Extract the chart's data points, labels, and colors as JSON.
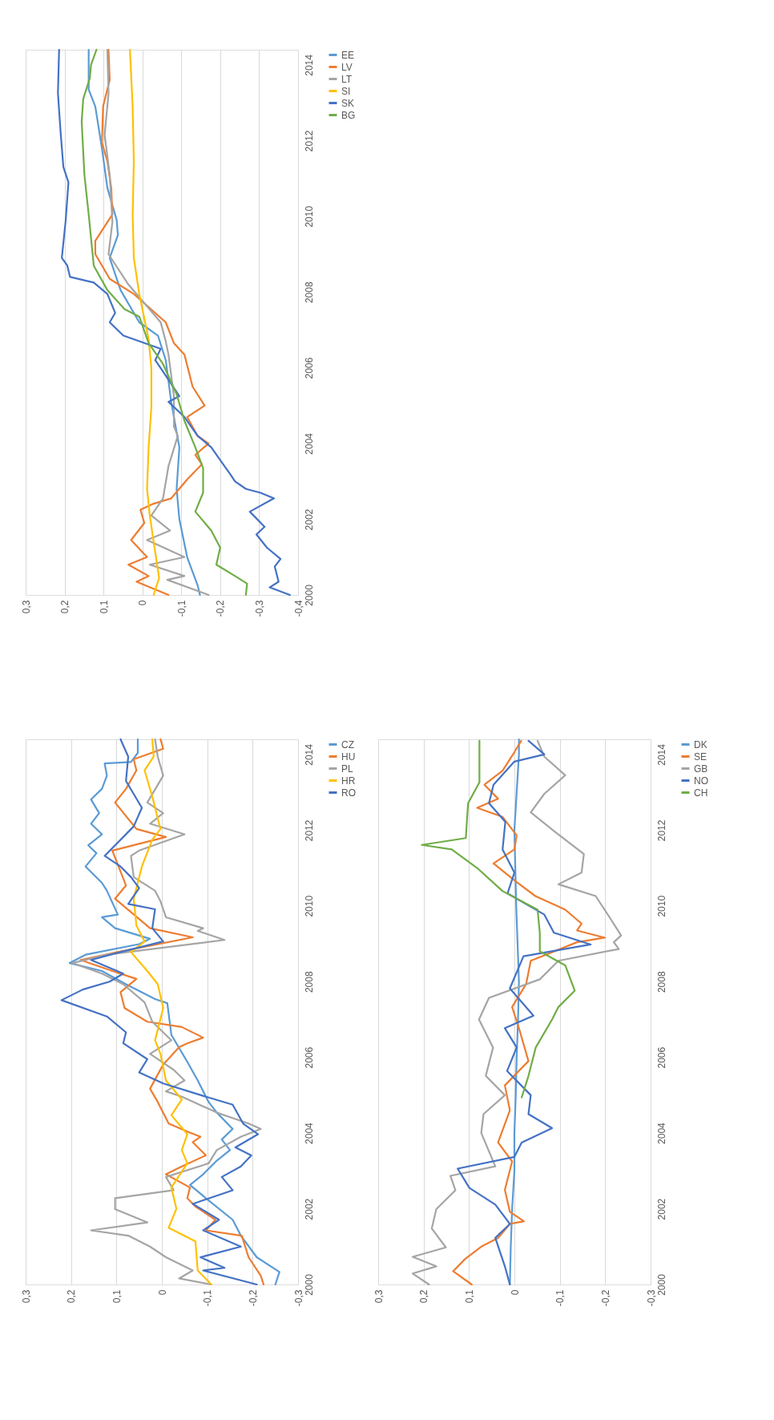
{
  "chart_data": [
    {
      "type": "line",
      "ylim": [
        2000,
        2014.4
      ],
      "yticks": [
        2000,
        2002,
        2004,
        2006,
        2008,
        2010,
        2012,
        2014
      ],
      "xlim": [
        0.3,
        -0.4
      ],
      "xticks": [
        {
          "value": 0.3,
          "label": "0,3"
        },
        {
          "value": 0.2,
          "label": "0,2"
        },
        {
          "value": 0.1,
          "label": "0,1"
        },
        {
          "value": 0,
          "label": "0"
        },
        {
          "value": -0.1,
          "label": "-0,1"
        },
        {
          "value": -0.2,
          "label": "-0,2"
        },
        {
          "value": -0.3,
          "label": "-0,3"
        },
        {
          "value": -0.4,
          "label": "-0,4"
        }
      ],
      "grid": "x",
      "legend": "right",
      "series": [
        {
          "name": "EE",
          "color": "#5b9bd5",
          "values": [
            2000.0,
            2000.25,
            2001.0,
            2002.0,
            2002.8,
            2003.9,
            2005.1,
            2006.2,
            2006.85,
            2007.2,
            2008.05,
            2008.9,
            2009.5,
            2009.9,
            2010.75,
            2011.8,
            2012.9,
            2013.35,
            2014.4
          ],
          "x": [
            -0.148,
            -0.142,
            -0.115,
            -0.095,
            -0.088,
            -0.095,
            -0.074,
            -0.06,
            -0.04,
            0.008,
            0.056,
            0.084,
            0.063,
            0.066,
            0.09,
            0.104,
            0.121,
            0.138,
            0.138
          ]
        },
        {
          "name": "LV",
          "color": "#ed7d31",
          "values": [
            2000.0,
            2000.35,
            2000.5,
            2000.8,
            2001.0,
            2001.45,
            2001.9,
            2002.25,
            2002.4,
            2002.55,
            2003.05,
            2003.45,
            2003.7,
            2004.0,
            2004.2,
            2004.7,
            2005.0,
            2005.5,
            2006.35,
            2006.65,
            2007.2,
            2007.95,
            2008.35,
            2009.0,
            2009.35,
            2010.05,
            2010.75,
            2011.45,
            2011.95,
            2012.9,
            2013.6,
            2014.4
          ],
          "x": [
            -0.067,
            0.015,
            -0.016,
            0.036,
            -0.012,
            0.029,
            -0.005,
            0.005,
            -0.026,
            -0.074,
            -0.115,
            -0.153,
            -0.136,
            -0.17,
            -0.142,
            -0.115,
            -0.16,
            -0.129,
            -0.108,
            -0.081,
            -0.06,
            0.022,
            0.084,
            0.121,
            0.121,
            0.077,
            0.08,
            0.09,
            0.104,
            0.101,
            0.084,
            0.087
          ]
        },
        {
          "name": "LT",
          "color": "#a5a5a5",
          "values": [
            2000.0,
            2000.4,
            2000.5,
            2000.8,
            2001.0,
            2001.45,
            2001.7,
            2002.1,
            2002.55,
            2003.4,
            2004.2,
            2004.45,
            2005.25,
            2006.35,
            2006.7,
            2007.2,
            2008.2,
            2009.0,
            2009.85,
            2011.1,
            2012.15,
            2013.25,
            2014.4
          ],
          "x": [
            -0.17,
            -0.064,
            -0.108,
            -0.019,
            -0.108,
            -0.012,
            -0.071,
            -0.023,
            -0.053,
            -0.067,
            -0.091,
            -0.081,
            -0.081,
            -0.067,
            -0.06,
            -0.047,
            0.036,
            0.087,
            0.077,
            0.084,
            0.097,
            0.087,
            0.09
          ]
        },
        {
          "name": "SI",
          "color": "#ffc000",
          "values": [
            2000.0,
            2000.45,
            2001.4,
            2002.1,
            2002.8,
            2003.9,
            2004.95,
            2006.0,
            2006.75,
            2007.95,
            2008.9,
            2010.05,
            2011.45,
            2012.9,
            2014.4
          ],
          "x": [
            -0.029,
            -0.043,
            -0.029,
            -0.019,
            -0.012,
            -0.016,
            -0.023,
            -0.023,
            -0.016,
            0.008,
            0.022,
            0.025,
            0.022,
            0.025,
            0.032
          ]
        },
        {
          "name": "SK",
          "color": "#4472c4",
          "values": [
            2000.0,
            2000.2,
            2000.35,
            2000.75,
            2000.95,
            2001.25,
            2001.6,
            2001.8,
            2002.2,
            2002.55,
            2002.7,
            2002.8,
            2003.0,
            2003.2,
            2003.5,
            2003.9,
            2004.2,
            2004.7,
            2005.1,
            2005.25,
            2005.9,
            2006.2,
            2006.5,
            2006.85,
            2007.2,
            2007.45,
            2007.95,
            2008.25,
            2008.4,
            2008.7,
            2008.9,
            2009.9,
            2010.9,
            2011.3,
            2012.2,
            2013.25,
            2014.4
          ],
          "x": [
            -0.379,
            -0.327,
            -0.35,
            -0.34,
            -0.355,
            -0.32,
            -0.293,
            -0.314,
            -0.276,
            -0.338,
            -0.303,
            -0.266,
            -0.238,
            -0.225,
            -0.204,
            -0.177,
            -0.142,
            -0.108,
            -0.067,
            -0.095,
            -0.053,
            -0.033,
            -0.047,
            0.049,
            0.084,
            0.07,
            0.09,
            0.125,
            0.186,
            0.193,
            0.207,
            0.197,
            0.19,
            0.203,
            0.21,
            0.217,
            0.214
          ]
        },
        {
          "name": "BG",
          "color": "#70ad47",
          "values": [
            2000.0,
            2000.3,
            2000.5,
            2000.8,
            2001.25,
            2001.7,
            2002.2,
            2002.7,
            2003.35,
            2003.9,
            2004.6,
            2005.3,
            2006.1,
            2006.65,
            2007.35,
            2007.55,
            2008.05,
            2008.7,
            2010.05,
            2011.1,
            2012.5,
            2013.1,
            2013.65,
            2014.0,
            2014.4
          ],
          "x": [
            -0.266,
            -0.269,
            -0.238,
            -0.19,
            -0.2,
            -0.177,
            -0.136,
            -0.156,
            -0.156,
            -0.136,
            -0.108,
            -0.088,
            -0.053,
            -0.016,
            0.008,
            0.046,
            0.09,
            0.125,
            0.138,
            0.149,
            0.156,
            0.152,
            0.135,
            0.132,
            0.118
          ]
        }
      ]
    },
    {
      "type": "line",
      "ylim": [
        2000,
        2014.4
      ],
      "yticks": [
        2000,
        2002,
        2004,
        2006,
        2008,
        2010,
        2012,
        2014
      ],
      "xlim": [
        0.3,
        -0.3
      ],
      "xticks": [
        {
          "value": 0.3,
          "label": "0,3"
        },
        {
          "value": 0.2,
          "label": "0,2"
        },
        {
          "value": 0.1,
          "label": "0,1"
        },
        {
          "value": 0,
          "label": "0"
        },
        {
          "value": -0.1,
          "label": "-0,1"
        },
        {
          "value": -0.2,
          "label": "-0,2"
        },
        {
          "value": -0.3,
          "label": "-0,3"
        }
      ],
      "grid": "x",
      "legend": "right",
      "series": [
        {
          "name": "CZ",
          "color": "#5b9bd5",
          "values": [
            2000.0,
            2000.33,
            2000.72,
            2001.29,
            2001.71,
            2002.28,
            2002.63,
            2002.91,
            2003.27,
            2003.55,
            2003.83,
            2004.11,
            2004.54,
            2004.82,
            2005.39,
            2005.88,
            2006.59,
            2007.43,
            2007.54,
            2007.93,
            2008.28,
            2008.49,
            2008.71,
            2008.99,
            2009.13,
            2009.41,
            2009.7,
            2009.77,
            2010.4,
            2010.61,
            2011.04,
            2011.39,
            2011.6,
            2011.89,
            2012.17,
            2012.45,
            2012.81,
            2013.09,
            2013.44,
            2013.76,
            2013.8,
            2014.04,
            2014.4
          ],
          "x": [
            -0.25,
            -0.259,
            -0.209,
            -0.174,
            -0.156,
            -0.097,
            -0.062,
            -0.091,
            -0.121,
            -0.15,
            -0.132,
            -0.156,
            -0.121,
            -0.103,
            -0.079,
            -0.056,
            -0.021,
            -0.012,
            0.015,
            0.079,
            0.132,
            0.203,
            0.168,
            0.05,
            0.026,
            0.103,
            0.132,
            0.097,
            0.121,
            0.132,
            0.168,
            0.144,
            0.162,
            0.132,
            0.156,
            0.138,
            0.156,
            0.132,
            0.121,
            0.126,
            0.068,
            0.053,
            0.053
          ]
        },
        {
          "name": "HU",
          "color": "#ed7d31",
          "values": [
            2000.0,
            2000.23,
            2000.72,
            2001.29,
            2001.43,
            2001.71,
            2002.06,
            2002.28,
            2002.56,
            2002.91,
            2003.12,
            2003.41,
            2003.76,
            2003.9,
            2004.04,
            2004.25,
            2004.82,
            2005.17,
            2005.81,
            2006.27,
            2006.37,
            2006.52,
            2006.8,
            2006.94,
            2007.3,
            2007.72,
            2008.07,
            2008.28,
            2008.57,
            2008.78,
            2009.17,
            2009.41,
            2010.19,
            2010.54,
            2011.46,
            2011.82,
            2012.03,
            2012.73,
            2013.09,
            2013.58,
            2013.87,
            2014.15,
            2014.4
          ],
          "x": [
            -0.224,
            -0.218,
            -0.191,
            -0.176,
            -0.097,
            -0.118,
            -0.074,
            -0.056,
            -0.062,
            -0.009,
            -0.044,
            -0.097,
            -0.068,
            -0.085,
            -0.056,
            -0.015,
            0.009,
            0.026,
            -0.003,
            -0.038,
            -0.056,
            -0.091,
            -0.044,
            0.032,
            0.082,
            0.091,
            0.056,
            0.109,
            0.179,
            0.097,
            -0.068,
            0.026,
            0.103,
            0.079,
            0.109,
            -0.009,
            0.056,
            0.103,
            0.079,
            0.056,
            0.062,
            -0.003,
            0.003
          ]
        },
        {
          "name": "PL",
          "color": "#a5a5a5",
          "values": [
            2000.0,
            2000.16,
            2000.37,
            2000.72,
            2001.0,
            2001.29,
            2001.43,
            2001.64,
            2001.99,
            2002.28,
            2002.49,
            2002.84,
            2003.2,
            2003.55,
            2003.9,
            2004.11,
            2004.25,
            2004.54,
            2004.96,
            2005.1,
            2005.39,
            2005.67,
            2006.09,
            2006.45,
            2006.94,
            2007.45,
            2007.93,
            2008.21,
            2008.49,
            2008.71,
            2009.1,
            2009.34,
            2009.41,
            2009.7,
            2010.12,
            2010.4,
            2010.76,
            2011.32,
            2011.46,
            2011.89,
            2012.17,
            2012.45,
            2012.73,
            2013.44,
            2013.94,
            2014.4
          ],
          "x": [
            -0.109,
            -0.038,
            -0.068,
            -0.009,
            0.026,
            0.074,
            0.156,
            0.032,
            0.103,
            0.103,
            -0.026,
            -0.009,
            -0.103,
            -0.121,
            -0.174,
            -0.218,
            -0.191,
            -0.121,
            -0.044,
            -0.009,
            -0.05,
            -0.026,
            0.026,
            -0.021,
            0.021,
            0.038,
            0.085,
            0.132,
            0.197,
            0.121,
            -0.138,
            -0.079,
            -0.091,
            -0.009,
            0.003,
            0.015,
            0.062,
            0.068,
            0.05,
            -0.05,
            0.026,
            -0.003,
            0.032,
            -0.003,
            0.009,
            0.015
          ]
        },
        {
          "name": "HR",
          "color": "#ffc000",
          "values": [
            2000.0,
            2000.37,
            2001.14,
            2001.5,
            2002.0,
            2002.56,
            2003.2,
            2003.55,
            2003.97,
            2004.47,
            2004.89,
            2005.39,
            2006.09,
            2006.45,
            2007.3,
            2007.93,
            2008.28,
            2008.78,
            2009.06,
            2009.48,
            2010.19,
            2011.04,
            2011.75,
            2012.03,
            2012.88,
            2013.58,
            2013.94,
            2014.4
          ],
          "x": [
            -0.109,
            -0.079,
            -0.074,
            -0.015,
            -0.032,
            -0.021,
            -0.056,
            -0.044,
            -0.056,
            -0.021,
            -0.044,
            -0.009,
            0.003,
            0.015,
            -0.003,
            0.009,
            0.032,
            0.068,
            0.038,
            0.056,
            0.062,
            0.044,
            0.021,
            0.003,
            0.021,
            0.038,
            0.018,
            0.021
          ]
        },
        {
          "name": "RO",
          "color": "#4472c4",
          "values": [
            2000.0,
            2000.37,
            2000.44,
            2000.72,
            2001.0,
            2001.43,
            2001.71,
            2002.13,
            2002.49,
            2002.84,
            2003.12,
            2003.41,
            2003.62,
            2003.97,
            2004.25,
            2004.75,
            2004.96,
            2005.31,
            2005.6,
            2005.95,
            2006.37,
            2006.66,
            2007.08,
            2007.51,
            2007.79,
            2008.0,
            2008.21,
            2008.57,
            2008.78,
            2009.06,
            2009.41,
            2009.91,
            2010.05,
            2010.47,
            2010.76,
            2011.04,
            2011.32,
            2012.1,
            2012.59,
            2013.3,
            2013.94,
            2014.4
          ],
          "x": [
            -0.209,
            -0.091,
            -0.138,
            -0.085,
            -0.174,
            -0.091,
            -0.126,
            -0.068,
            -0.156,
            -0.132,
            -0.174,
            -0.197,
            -0.162,
            -0.212,
            -0.179,
            -0.156,
            -0.097,
            -0.003,
            0.05,
            0.032,
            0.085,
            0.079,
            0.121,
            0.221,
            0.174,
            0.115,
            0.085,
            0.156,
            0.091,
            -0.003,
            0.021,
            0.015,
            0.074,
            0.05,
            0.068,
            0.091,
            0.126,
            0.062,
            0.044,
            0.079,
            0.074,
            0.091
          ]
        }
      ]
    },
    {
      "type": "line",
      "ylim": [
        2000,
        2014.4
      ],
      "yticks": [
        2000,
        2002,
        2004,
        2006,
        2008,
        2010,
        2012,
        2014
      ],
      "xlim": [
        0.3,
        -0.3
      ],
      "xticks": [
        {
          "value": 0.3,
          "label": "0,3"
        },
        {
          "value": 0.2,
          "label": "0,2"
        },
        {
          "value": 0.1,
          "label": "0,1"
        },
        {
          "value": 0,
          "label": "0"
        },
        {
          "value": -0.1,
          "label": "-0,1"
        },
        {
          "value": -0.2,
          "label": "-0,2"
        },
        {
          "value": -0.3,
          "label": "-0,3"
        }
      ],
      "grid": "x",
      "legend": "right",
      "series": [
        {
          "name": "DK",
          "color": "#5b9bd5",
          "values": [
            2000,
            2001,
            2002,
            2003,
            2004,
            2005,
            2006,
            2007,
            2008,
            2009,
            2010,
            2011,
            2012,
            2013,
            2014,
            2014.4
          ],
          "x": [
            0.01,
            0.008,
            0.005,
            0.0,
            0.0,
            -0.003,
            -0.005,
            -0.008,
            -0.01,
            -0.007,
            -0.004,
            -0.002,
            0.0,
            -0.005,
            -0.01,
            -0.01
          ]
        },
        {
          "name": "SE",
          "color": "#ed7d31",
          "values": [
            2000.0,
            2000.35,
            2000.67,
            2001.0,
            2001.23,
            2001.6,
            2001.67,
            2001.92,
            2002.5,
            2003.25,
            2003.75,
            2004.6,
            2005.26,
            2005.9,
            2006.77,
            2007.33,
            2007.94,
            2008.55,
            2009.04,
            2009.16,
            2009.35,
            2009.53,
            2009.9,
            2010.26,
            2010.63,
            2011.12,
            2011.49,
            2011.86,
            2012.35,
            2012.59,
            2012.83,
            2013.2,
            2013.57,
            2014.06,
            2014.36
          ],
          "x": [
            0.094,
            0.135,
            0.109,
            0.073,
            0.036,
            0.01,
            -0.021,
            0.01,
            0.021,
            0.005,
            0.036,
            0.01,
            0.021,
            -0.031,
            -0.01,
            0.005,
            -0.026,
            -0.036,
            -0.138,
            -0.199,
            -0.138,
            -0.148,
            -0.112,
            -0.046,
            -0.005,
            0.046,
            0.0,
            -0.005,
            0.026,
            0.082,
            0.036,
            0.066,
            0.026,
            0.0,
            -0.015
          ]
        },
        {
          "name": "GB",
          "color": "#a5a5a5",
          "values": [
            2000.0,
            2000.29,
            2000.48,
            2000.73,
            2000.98,
            2001.48,
            2001.99,
            2002.49,
            2002.87,
            2003.12,
            2004.0,
            2004.5,
            2005.0,
            2005.51,
            2006.26,
            2007.0,
            2007.57,
            2008.06,
            2008.55,
            2008.86,
            2009.04,
            2009.22,
            2009.71,
            2010.26,
            2010.57,
            2010.88,
            2011.37,
            2011.98,
            2012.47,
            2012.96,
            2013.45,
            2013.94,
            2014.36
          ],
          "x": [
            0.188,
            0.224,
            0.172,
            0.224,
            0.151,
            0.182,
            0.172,
            0.13,
            0.141,
            0.042,
            0.073,
            0.068,
            0.021,
            0.063,
            0.047,
            0.078,
            0.056,
            -0.056,
            -0.097,
            -0.23,
            -0.219,
            -0.235,
            -0.209,
            -0.179,
            -0.097,
            -0.148,
            -0.153,
            -0.087,
            -0.036,
            -0.066,
            -0.112,
            -0.066,
            -0.051
          ]
        },
        {
          "name": "NO",
          "color": "#4472c4",
          "values": [
            2000.0,
            2000.48,
            2001.23,
            2001.6,
            2002.11,
            2002.55,
            2003.06,
            2003.37,
            2003.75,
            2004.13,
            2004.5,
            2005.0,
            2005.64,
            2006.26,
            2006.77,
            2007.1,
            2007.82,
            2008.67,
            2008.98,
            2009.29,
            2009.77,
            2010.33,
            2010.88,
            2011.49,
            2012.22,
            2012.71,
            2013.2,
            2013.81,
            2014.0,
            2014.36
          ],
          "x": [
            0.01,
            0.021,
            0.042,
            0.01,
            0.042,
            0.099,
            0.125,
            0.0,
            -0.016,
            -0.083,
            -0.031,
            -0.036,
            0.016,
            -0.005,
            0.021,
            -0.042,
            0.01,
            -0.02,
            -0.168,
            -0.087,
            -0.066,
            0.015,
            0.0,
            0.026,
            0.02,
            0.056,
            0.046,
            0.0,
            -0.066,
            -0.031
          ]
        },
        {
          "name": "CH",
          "color": "#70ad47",
          "values": [
            2004.94,
            2005.51,
            2006.26,
            2007.0,
            2007.33,
            2007.76,
            2008.43,
            2008.8,
            2009.29,
            2009.9,
            2010.39,
            2011.0,
            2011.49,
            2011.61,
            2011.79,
            2012.71,
            2013.26,
            2013.94,
            2014.36
          ],
          "x": [
            -0.016,
            -0.031,
            -0.047,
            -0.083,
            -0.097,
            -0.133,
            -0.112,
            -0.056,
            -0.056,
            -0.051,
            0.026,
            0.082,
            0.138,
            0.204,
            0.107,
            0.102,
            0.077,
            0.077,
            0.077
          ]
        }
      ]
    }
  ]
}
